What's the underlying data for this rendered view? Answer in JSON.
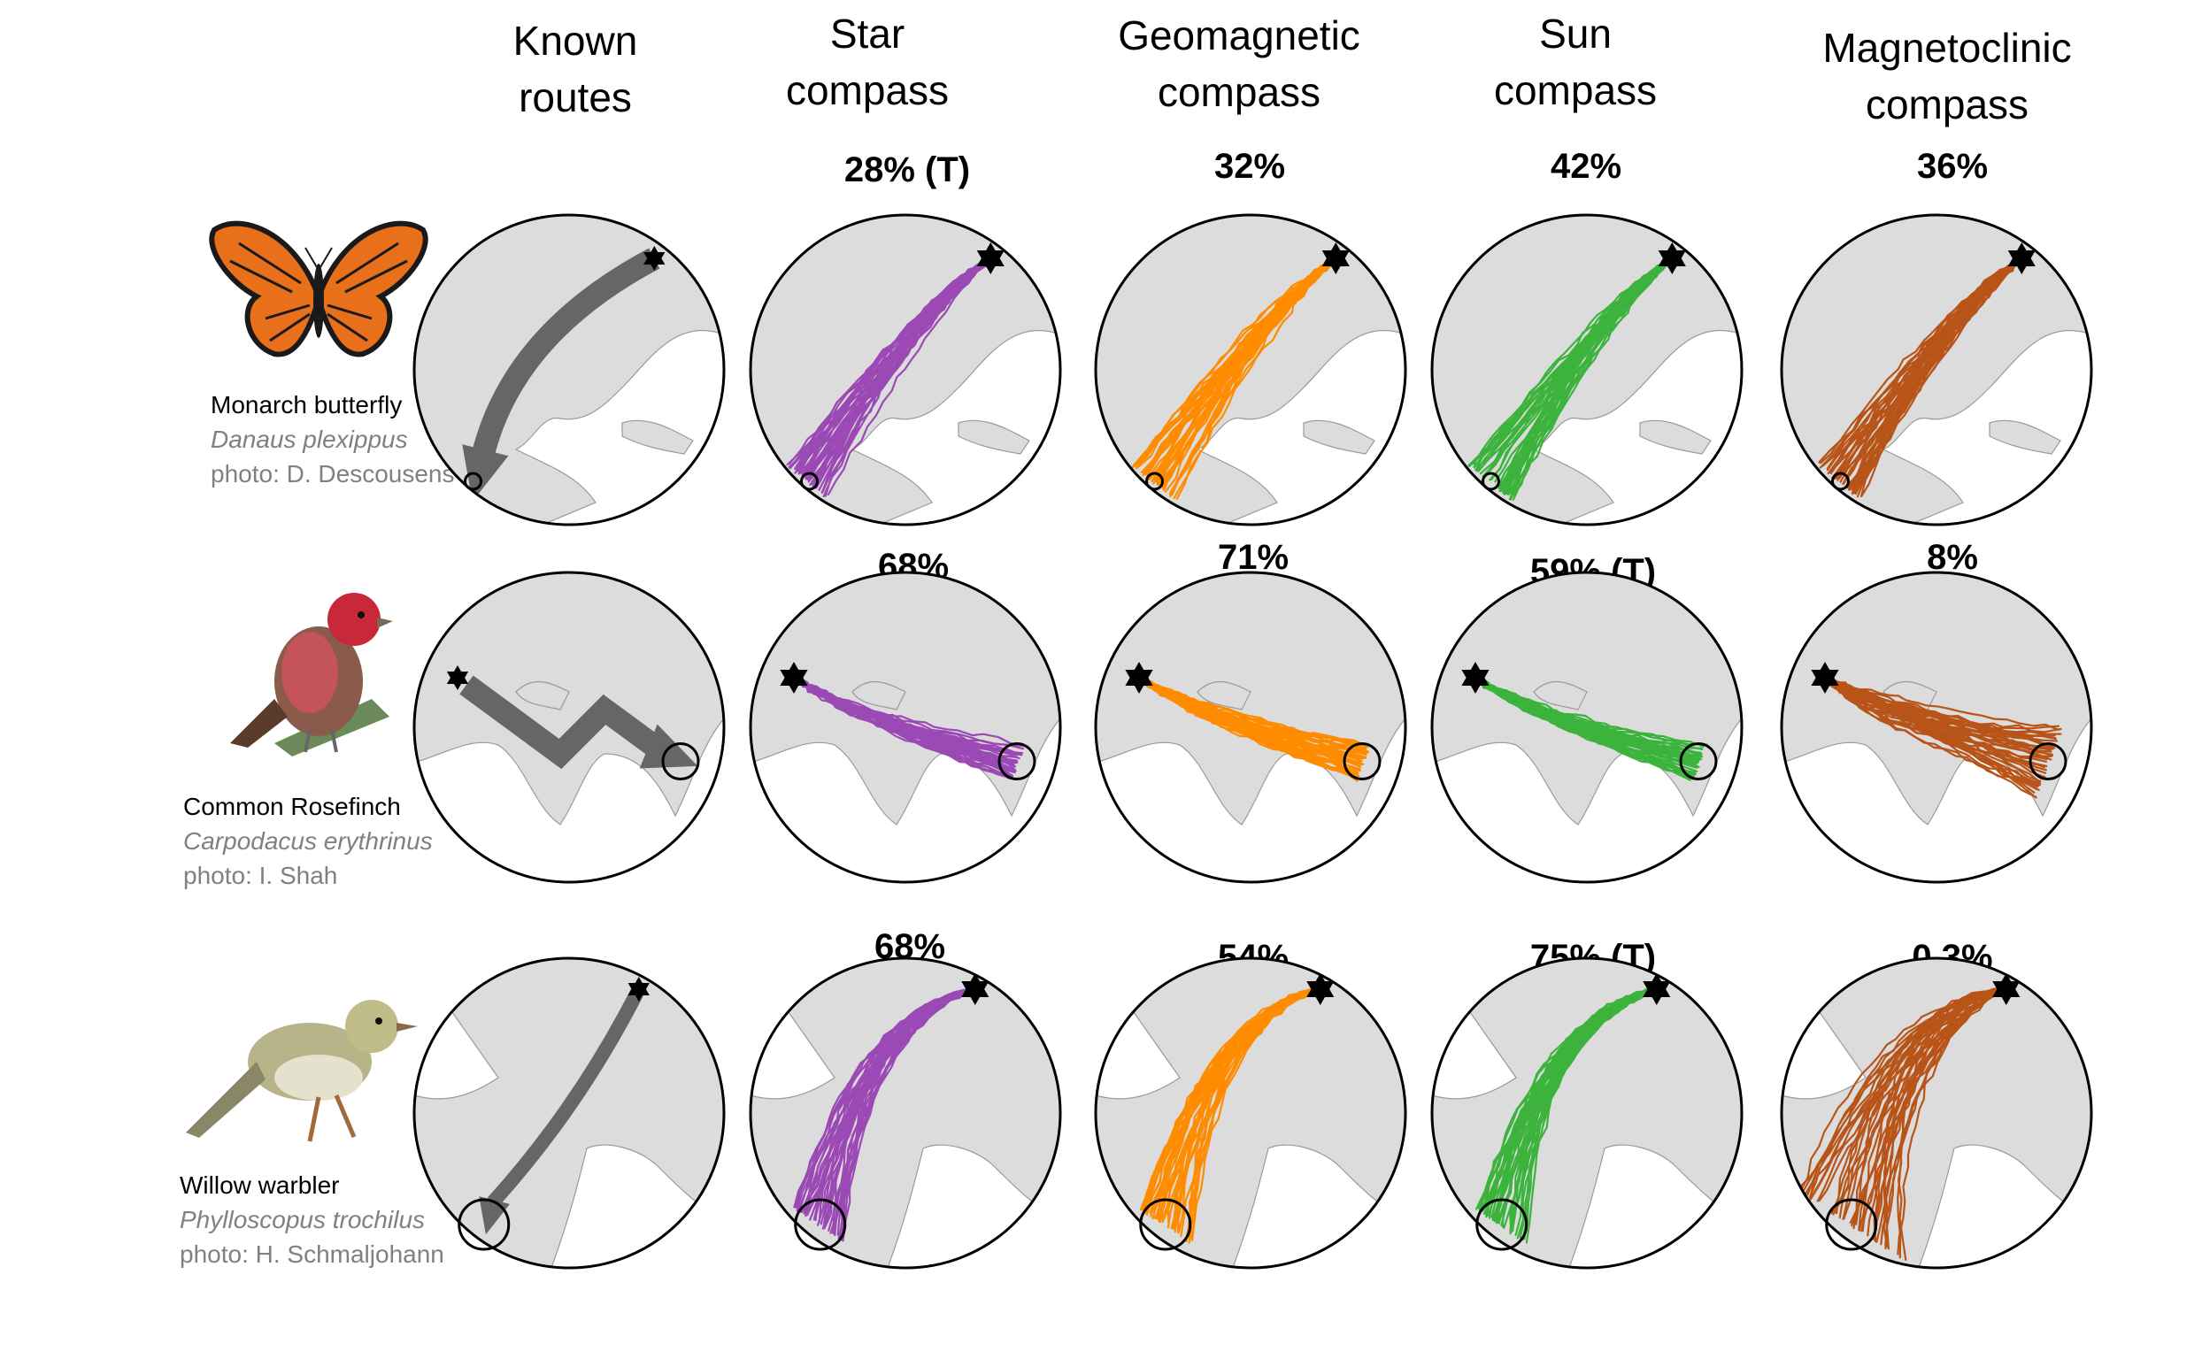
{
  "columns": [
    {
      "title_lines": [
        "Known",
        "routes"
      ]
    },
    {
      "title_lines": [
        "Star",
        "compass"
      ],
      "color": "#9b49b5"
    },
    {
      "title_lines": [
        "Geomagnetic",
        "compass"
      ],
      "color": "#ff8c00"
    },
    {
      "title_lines": [
        "Sun",
        "compass"
      ],
      "color": "#3cb33c"
    },
    {
      "title_lines": [
        "Magnetoclinic",
        "compass"
      ],
      "color": "#b85418"
    }
  ],
  "rows": [
    {
      "common_name": "Monarch butterfly",
      "scientific_name": "Danaus plexippus",
      "photo_credit": "photo: D. Descousens",
      "photo_icon": "monarch-butterfly",
      "percentages": [
        "28% (T)",
        "32%",
        "42%",
        "36%"
      ]
    },
    {
      "common_name": "Common Rosefinch",
      "scientific_name": "Carpodacus erythrinus",
      "photo_credit": "photo: I. Shah",
      "photo_icon": "rosefinch-bird",
      "percentages": [
        "68%",
        "71%",
        "59% (T)",
        "8%"
      ]
    },
    {
      "common_name": "Willow warbler",
      "scientific_name": "Phylloscopus trochilus",
      "photo_credit": "photo: H. Schmaljohann",
      "photo_icon": "warbler-bird",
      "percentages": [
        "68%",
        "54%",
        "75% (T)",
        "0.3%"
      ]
    }
  ],
  "known_route_color": "#666666",
  "land_color": "#dcdcdc"
}
